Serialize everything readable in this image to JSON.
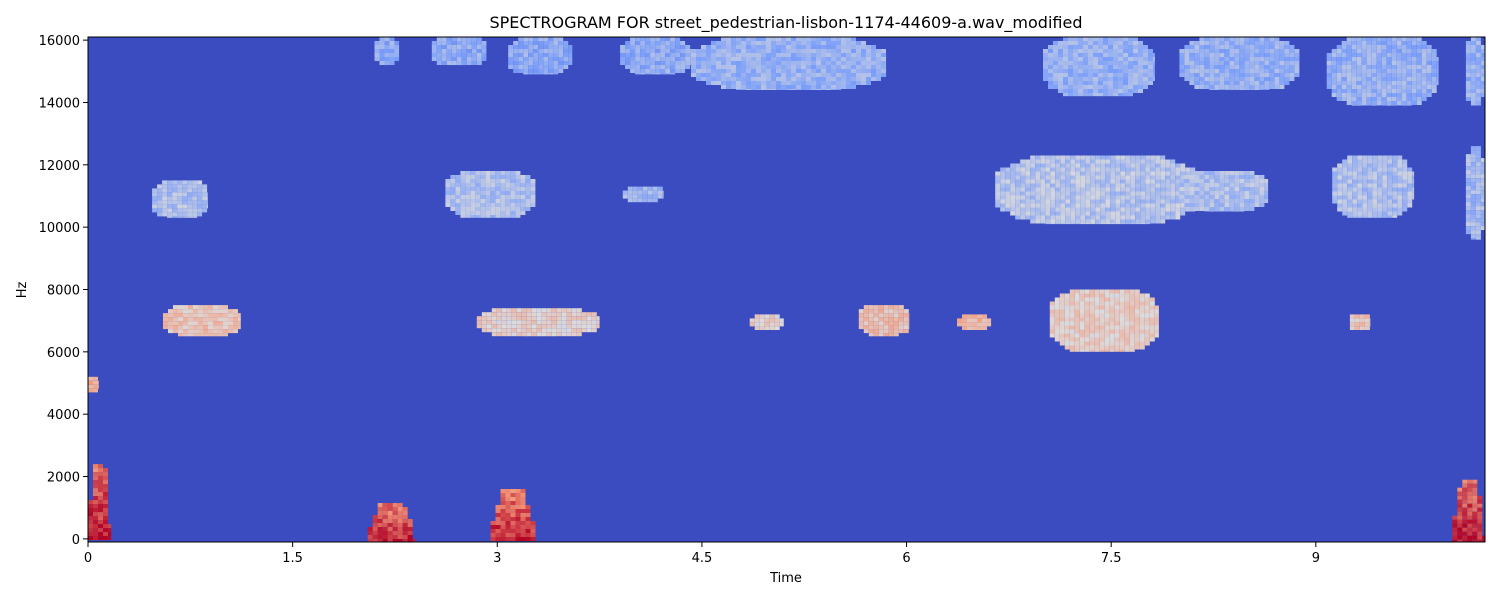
{
  "chart_data": {
    "type": "heatmap",
    "title": "SPECTROGRAM FOR street_pedestrian-lisbon-1174-44609-a.wav_modified",
    "xlabel": "Time",
    "ylabel": "Hz",
    "xlim": [
      0,
      10.24
    ],
    "ylim": [
      -100,
      16100
    ],
    "x_ticks": [
      {
        "value": 0,
        "label": "0"
      },
      {
        "value": 1.5,
        "label": "1.5"
      },
      {
        "value": 3,
        "label": "3"
      },
      {
        "value": 4.5,
        "label": "4.5"
      },
      {
        "value": 6,
        "label": "6"
      },
      {
        "value": 7.5,
        "label": "7.5"
      },
      {
        "value": 9,
        "label": "9"
      }
    ],
    "y_ticks": [
      {
        "value": 0,
        "label": "0"
      },
      {
        "value": 2000,
        "label": "2000"
      },
      {
        "value": 4000,
        "label": "4000"
      },
      {
        "value": 6000,
        "label": "6000"
      },
      {
        "value": 8000,
        "label": "8000"
      },
      {
        "value": 10000,
        "label": "10000"
      },
      {
        "value": 12000,
        "label": "12000"
      },
      {
        "value": 14000,
        "label": "14000"
      },
      {
        "value": 16000,
        "label": "16000"
      }
    ],
    "colormap": "coolwarm",
    "background_level": 0.0,
    "regions": [
      {
        "x0": 0.0,
        "x1": 0.08,
        "f_lo": 4700,
        "f_hi": 5200,
        "level": 0.7
      },
      {
        "x0": 0.0,
        "x1": 0.17,
        "f_lo": -100,
        "f_hi": 2400,
        "level": 0.82,
        "shape": "peak"
      },
      {
        "x0": 2.05,
        "x1": 2.4,
        "f_lo": -100,
        "f_hi": 1150,
        "level": 0.8,
        "shape": "peak"
      },
      {
        "x0": 2.95,
        "x1": 3.28,
        "f_lo": -100,
        "f_hi": 1600,
        "level": 0.8,
        "shape": "peak"
      },
      {
        "x0": 10.0,
        "x1": 10.24,
        "f_lo": -100,
        "f_hi": 1900,
        "level": 0.82,
        "shape": "peak"
      },
      {
        "x0": 0.55,
        "x1": 1.12,
        "f_lo": 6500,
        "f_hi": 7500,
        "level": 0.6
      },
      {
        "x0": 2.85,
        "x1": 3.75,
        "f_lo": 6500,
        "f_hi": 7400,
        "level": 0.55
      },
      {
        "x0": 4.85,
        "x1": 5.1,
        "f_lo": 6700,
        "f_hi": 7200,
        "level": 0.55
      },
      {
        "x0": 5.65,
        "x1": 6.02,
        "f_lo": 6500,
        "f_hi": 7500,
        "level": 0.62
      },
      {
        "x0": 6.37,
        "x1": 6.62,
        "f_lo": 6700,
        "f_hi": 7200,
        "level": 0.65
      },
      {
        "x0": 7.05,
        "x1": 7.85,
        "f_lo": 6000,
        "f_hi": 8000,
        "level": 0.56
      },
      {
        "x0": 9.25,
        "x1": 9.4,
        "f_lo": 6700,
        "f_hi": 7200,
        "level": 0.6
      },
      {
        "x0": 0.47,
        "x1": 0.88,
        "f_lo": 10300,
        "f_hi": 11500,
        "level": 0.38
      },
      {
        "x0": 2.62,
        "x1": 3.28,
        "f_lo": 10300,
        "f_hi": 11800,
        "level": 0.38
      },
      {
        "x0": 3.92,
        "x1": 4.22,
        "f_lo": 10800,
        "f_hi": 11300,
        "level": 0.35
      },
      {
        "x0": 6.65,
        "x1": 8.15,
        "f_lo": 10100,
        "f_hi": 12300,
        "level": 0.4
      },
      {
        "x0": 8.0,
        "x1": 8.65,
        "f_lo": 10500,
        "f_hi": 11800,
        "level": 0.38
      },
      {
        "x0": 9.12,
        "x1": 9.72,
        "f_lo": 10300,
        "f_hi": 12300,
        "level": 0.38
      },
      {
        "x0": 10.1,
        "x1": 10.24,
        "f_lo": 9600,
        "f_hi": 12600,
        "level": 0.36
      },
      {
        "x0": 2.1,
        "x1": 2.28,
        "f_lo": 15200,
        "f_hi": 16100,
        "level": 0.3
      },
      {
        "x0": 2.52,
        "x1": 2.92,
        "f_lo": 15200,
        "f_hi": 16100,
        "level": 0.3
      },
      {
        "x0": 3.08,
        "x1": 3.55,
        "f_lo": 14900,
        "f_hi": 16100,
        "level": 0.3
      },
      {
        "x0": 3.9,
        "x1": 4.42,
        "f_lo": 14900,
        "f_hi": 16100,
        "level": 0.3
      },
      {
        "x0": 4.42,
        "x1": 5.85,
        "f_lo": 14400,
        "f_hi": 16100,
        "level": 0.32
      },
      {
        "x0": 7.0,
        "x1": 7.82,
        "f_lo": 14200,
        "f_hi": 16100,
        "level": 0.32
      },
      {
        "x0": 8.0,
        "x1": 8.88,
        "f_lo": 14400,
        "f_hi": 16100,
        "level": 0.32
      },
      {
        "x0": 9.08,
        "x1": 9.9,
        "f_lo": 13900,
        "f_hi": 16100,
        "level": 0.32
      },
      {
        "x0": 10.1,
        "x1": 10.24,
        "f_lo": 13900,
        "f_hi": 16100,
        "level": 0.32
      }
    ]
  }
}
